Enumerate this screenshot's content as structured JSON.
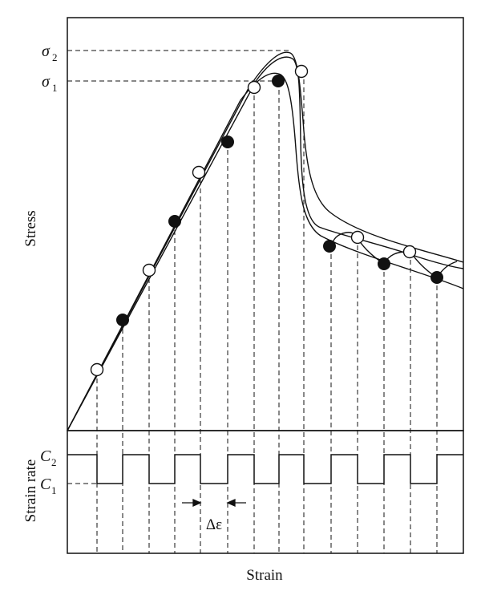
{
  "labels": {
    "stress_axis": "Stress",
    "strain_axis": "Strain",
    "strain_rate_axis": "Strain rate",
    "sigma2": "σ",
    "sigma2_sub": "2",
    "sigma1": "σ",
    "sigma1_sub": "1",
    "c2": "C",
    "c2_sub": "2",
    "c1": "C",
    "c1_sub": "1",
    "delta_epsilon": "Δε"
  },
  "colors": {
    "ink": "#111111",
    "open_marker": "#ffffff",
    "filled_marker": "#111111"
  }
}
